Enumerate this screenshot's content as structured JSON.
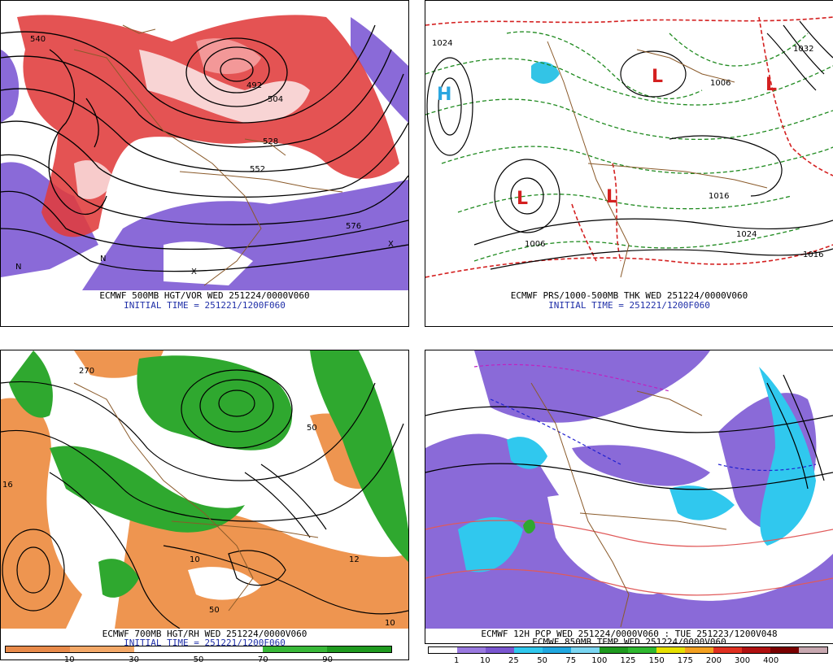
{
  "panels": {
    "top_left": {
      "caption": "ECMWF 500MB HGT/VOR WED 251224/0000V060",
      "initial": "INITIAL TIME = 251221/1200F060",
      "contour_labels": [
        "540",
        "492",
        "504",
        "528",
        "552",
        "576"
      ],
      "markers": [
        "N",
        "X"
      ]
    },
    "top_right": {
      "caption": "ECMWF PRS/1000-500MB THK WED 251224/0000V060",
      "initial": "INITIAL TIME = 251221/1200F060",
      "contour_labels": [
        "1024",
        "1006",
        "1016",
        "1006",
        "1024",
        "1016",
        "1032"
      ],
      "highs": [
        "H"
      ],
      "lows": [
        "L",
        "L",
        "L",
        "L"
      ]
    },
    "bottom_left": {
      "caption": "ECMWF 700MB HGT/RH WED 251224/0000V060",
      "initial": "INITIAL TIME = 251221/1200F060",
      "contour_labels": [
        "270",
        "16",
        "50",
        "10",
        "12",
        "50",
        "10"
      ],
      "colorbar": {
        "colors": [
          "#e88a4a",
          "#f3a868",
          "#ffffff",
          "#ffffff",
          "#38b838",
          "#1f9a1f"
        ],
        "ticks": [
          "10",
          "30",
          "50",
          "70",
          "90"
        ]
      }
    },
    "bottom_right": {
      "caption": "ECMWF 12H PCP WED 251224/0000V060 : TUE 251223/1200V048",
      "caption2": "ECMWF 850MB TEMP WED 251224/0000V060",
      "colorbar": {
        "colors": [
          "#ffffff",
          "#9a7ae0",
          "#7a56d0",
          "#30c8ee",
          "#20a8e0",
          "#7ad6f2",
          "#1f9a1f",
          "#2fb82f",
          "#e6e000",
          "#f3a020",
          "#e03020",
          "#b01010",
          "#7a0000",
          "#c8a8b0"
        ],
        "ticks": [
          "1",
          "10",
          "25",
          "50",
          "75",
          "100",
          "125",
          "150",
          "175",
          "200",
          "300",
          "400"
        ]
      }
    }
  }
}
